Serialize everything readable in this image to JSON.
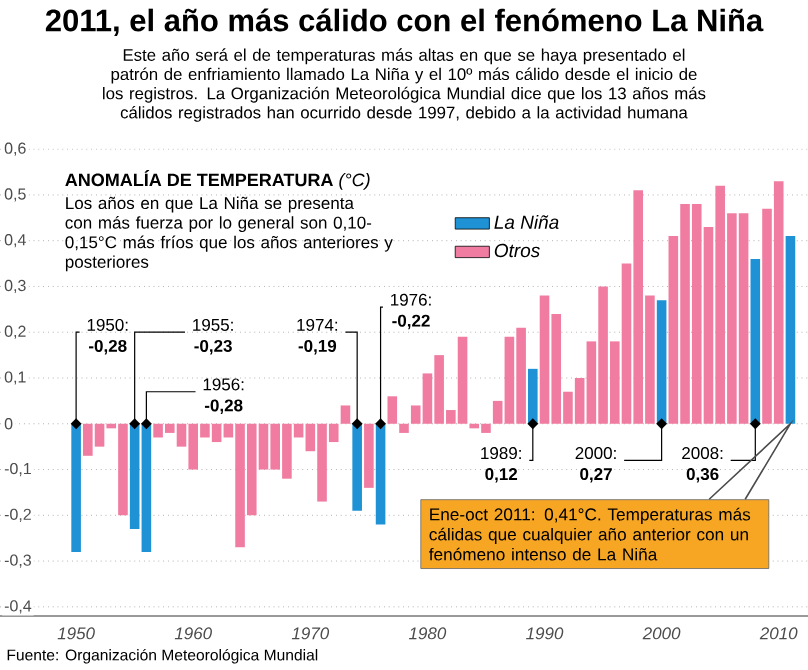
{
  "chart_data": {
    "type": "bar",
    "title": "2011, el año más cálido con el fenómeno La Niña",
    "subtitle": "Este año será el de temperaturas más altas en que se haya presentado el patrón de enfriamiento llamado La Niña y el 10º más cálido desde el inicio de los registros. La Organización Meteorológica Mundial dice que los 13 años más cálidos registrados han ocurrido desde 1997, debido a la actividad humana",
    "ylabel": "**ANOMALÍA DE TEMPERATURA** *(°C)*",
    "x": [
      1950,
      1951,
      1952,
      1953,
      1954,
      1955,
      1956,
      1957,
      1958,
      1959,
      1960,
      1961,
      1962,
      1963,
      1964,
      1965,
      1966,
      1967,
      1968,
      1969,
      1970,
      1971,
      1972,
      1973,
      1974,
      1975,
      1976,
      1977,
      1978,
      1979,
      1980,
      1981,
      1982,
      1983,
      1984,
      1985,
      1986,
      1987,
      1988,
      1989,
      1990,
      1991,
      1992,
      1993,
      1994,
      1995,
      1996,
      1997,
      1998,
      1999,
      2000,
      2001,
      2002,
      2003,
      2004,
      2005,
      2006,
      2007,
      2008,
      2009,
      2010,
      2011
    ],
    "xlim": [
      1943.5,
      2012.5
    ],
    "xticks": [
      1950,
      1960,
      1970,
      1980,
      1990,
      2000,
      2010
    ],
    "ylim": [
      -0.42,
      0.62
    ],
    "yticks": [
      {
        "value": -0.4,
        "label": "-0,4"
      },
      {
        "value": -0.3,
        "label": "-0,3"
      },
      {
        "value": -0.2,
        "label": "-0,2"
      },
      {
        "value": -0.1,
        "label": "-0,1"
      },
      0,
      {
        "value": 0.1,
        "label": "0,1"
      },
      {
        "value": 0.2,
        "label": "0,2"
      },
      {
        "value": 0.3,
        "label": "0,3"
      },
      {
        "value": 0.4,
        "label": "0,4"
      },
      {
        "value": 0.5,
        "label": "0,5"
      },
      {
        "value": 0.6,
        "label": "0,6"
      }
    ],
    "grid": "y",
    "legend": "top",
    "series": [
      {
        "name": "La Niña",
        "color": "#1f92d6",
        "values": [
          -0.28,
          null,
          null,
          null,
          null,
          -0.23,
          -0.28,
          null,
          null,
          null,
          null,
          null,
          null,
          null,
          null,
          null,
          null,
          null,
          null,
          null,
          null,
          null,
          null,
          null,
          -0.19,
          null,
          -0.22,
          null,
          null,
          null,
          null,
          null,
          null,
          null,
          null,
          null,
          null,
          null,
          null,
          0.12,
          null,
          null,
          null,
          null,
          null,
          null,
          null,
          null,
          null,
          null,
          0.27,
          null,
          null,
          null,
          null,
          null,
          null,
          null,
          0.36,
          null,
          null,
          0.41
        ],
        "value_labels": [
          "-0,28",
          null,
          null,
          null,
          null,
          "-0,23",
          "-0,28",
          null,
          null,
          null,
          null,
          null,
          null,
          null,
          null,
          null,
          null,
          null,
          null,
          null,
          null,
          null,
          null,
          null,
          "-0,19",
          null,
          "-0,22",
          null,
          null,
          null,
          null,
          null,
          null,
          null,
          null,
          null,
          null,
          null,
          null,
          "0,12",
          null,
          null,
          null,
          null,
          null,
          null,
          null,
          null,
          null,
          null,
          "0,27",
          null,
          null,
          null,
          null,
          null,
          null,
          null,
          "0,36",
          null,
          null,
          null
        ]
      },
      {
        "name": "Otros",
        "color": "#f07ca2",
        "values": [
          null,
          -0.07,
          -0.05,
          -0.01,
          -0.2,
          null,
          null,
          -0.03,
          -0.02,
          -0.05,
          -0.1,
          -0.03,
          -0.04,
          -0.03,
          -0.27,
          -0.2,
          -0.1,
          -0.1,
          -0.12,
          -0.03,
          -0.06,
          -0.17,
          -0.04,
          0.04,
          null,
          -0.14,
          null,
          0.06,
          -0.02,
          0.04,
          0.11,
          0.15,
          0.03,
          0.19,
          -0.01,
          -0.02,
          0.05,
          0.19,
          0.21,
          null,
          0.28,
          0.24,
          0.07,
          0.1,
          0.18,
          0.3,
          0.18,
          0.35,
          0.51,
          0.28,
          null,
          0.41,
          0.48,
          0.48,
          0.43,
          0.52,
          0.46,
          0.46,
          null,
          0.47,
          0.53,
          null
        ]
      }
    ],
    "annotations": [
      "Los años en que La Niña se presenta con más fuerza por lo general son 0,10-0,15°C más fríos que los años anteriores y posteriores",
      "Fuente: Organización Meteorológica Mundial",
      {
        "text": "1950:",
        "x": 1950,
        "y": 0
      },
      {
        "text": "1955:",
        "x": 1955,
        "y": 0
      },
      {
        "text": "1956:",
        "x": 1956,
        "y": 0
      },
      {
        "text": "1974:",
        "x": 1974,
        "y": 0
      },
      {
        "text": "1976:",
        "x": 1976,
        "y": 0
      },
      {
        "text": "1989:",
        "x": 1989,
        "y": 0
      },
      {
        "text": "2000:",
        "x": 2000,
        "y": 0
      },
      {
        "text": "2008:",
        "x": 2008,
        "y": 0
      },
      "Ene-oct 2011: 0,41°C. Temperaturas más cálidas que cualquier año anterior con un fenómeno intenso de La Niña"
    ]
  }
}
